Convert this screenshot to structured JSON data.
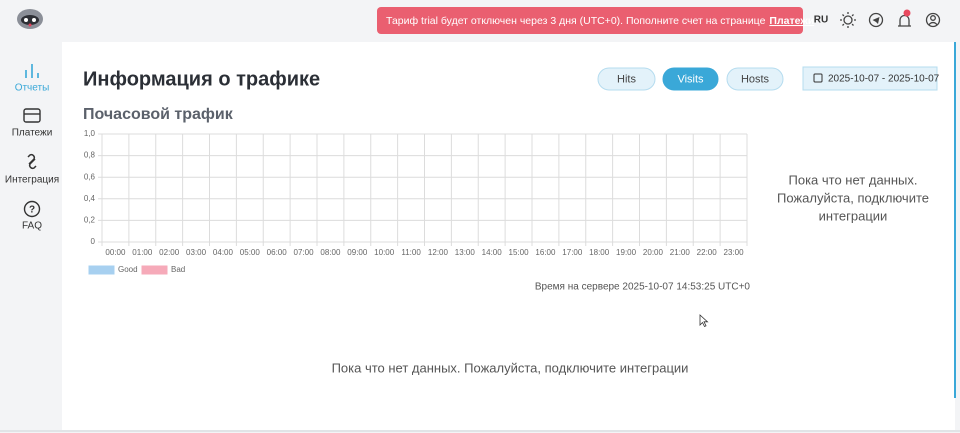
{
  "header": {
    "banner": {
      "text": "Тариф trial будет отключен через 3 дня (UTC+0). Пополните счет на странице",
      "link": "Платежи"
    },
    "language": "RU"
  },
  "sidebar": {
    "items": [
      "Отчеты",
      "Платежи",
      "Интеграция",
      "FAQ"
    ],
    "active": 0
  },
  "page": {
    "title": "Информация о трафике",
    "tabs": [
      "Hits",
      "Visits",
      "Hosts"
    ],
    "active_tab": 1,
    "date_range": "2025-10-07 - 2025-10-07",
    "server_time": "Время на сервере 2025-10-07 14:53:25 UTC+0",
    "side_message": [
      "Пока что нет данных.",
      "Пожалуйста, подключите",
      "интеграции"
    ],
    "empty_message": "Пока что нет данных. Пожалуйста, подключите интеграции"
  },
  "chart_data": {
    "type": "bar",
    "title": "Почасовой трафик",
    "categories": [
      "00:00",
      "01:00",
      "02:00",
      "03:00",
      "04:00",
      "05:00",
      "06:00",
      "07:00",
      "08:00",
      "09:00",
      "10:00",
      "11:00",
      "12:00",
      "13:00",
      "14:00",
      "15:00",
      "16:00",
      "17:00",
      "18:00",
      "19:00",
      "20:00",
      "21:00",
      "22:00",
      "23:00"
    ],
    "series": [
      {
        "name": "Good",
        "color": "#a7d0f0",
        "values": [
          null,
          null,
          null,
          null,
          null,
          null,
          null,
          null,
          null,
          null,
          null,
          null,
          null,
          null,
          null,
          null,
          null,
          null,
          null,
          null,
          null,
          null,
          null,
          null
        ]
      },
      {
        "name": "Bad",
        "color": "#f6aab9",
        "values": [
          null,
          null,
          null,
          null,
          null,
          null,
          null,
          null,
          null,
          null,
          null,
          null,
          null,
          null,
          null,
          null,
          null,
          null,
          null,
          null,
          null,
          null,
          null,
          null
        ]
      }
    ],
    "ylim": [
      0,
      1
    ],
    "yticks": [
      0,
      {
        "value": 0.2,
        "label": "0,2"
      },
      {
        "value": 0.4,
        "label": "0,4"
      },
      {
        "value": 0.6,
        "label": "0,6"
      },
      {
        "value": 0.8,
        "label": "0,8"
      },
      {
        "value": 1,
        "label": "1,0"
      }
    ],
    "grid": true
  }
}
